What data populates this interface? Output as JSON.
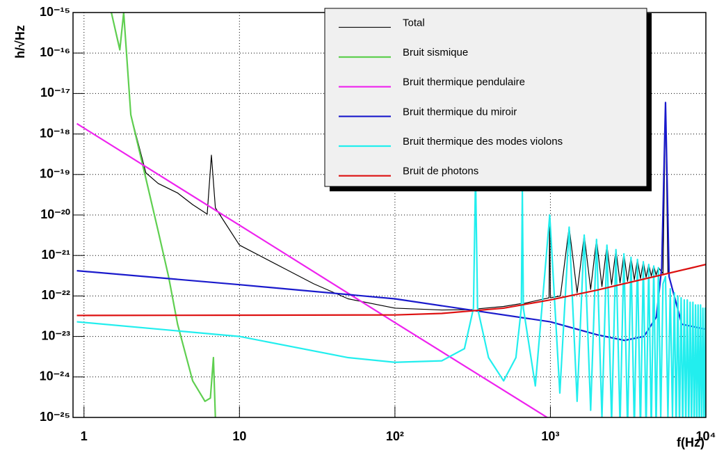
{
  "chart_data": {
    "type": "line",
    "x_label": "f(Hz)",
    "y_label": "h/√Hz",
    "log_x": true,
    "log_y": true,
    "grid": true,
    "legend": "top-right",
    "xlim": [
      0.85,
      10000
    ],
    "ylim": [
      1e-25,
      1e-15
    ],
    "xticks": [
      1,
      10,
      {
        "value": 100,
        "label": "10²"
      },
      {
        "value": 1000,
        "label": "10³"
      },
      {
        "value": 10000,
        "label": "10⁴"
      }
    ],
    "yticks": [
      {
        "value": 1e-25,
        "label": "10⁻²⁵"
      },
      {
        "value": 1e-24,
        "label": "10⁻²⁴"
      },
      {
        "value": 1e-23,
        "label": "10⁻²³"
      },
      {
        "value": 1e-22,
        "label": "10⁻²²"
      },
      {
        "value": 1e-21,
        "label": "10⁻²¹"
      },
      {
        "value": 1e-20,
        "label": "10⁻²⁰"
      },
      {
        "value": 1e-19,
        "label": "10⁻¹⁹"
      },
      {
        "value": 1e-18,
        "label": "10⁻¹⁸"
      },
      {
        "value": 1e-17,
        "label": "10⁻¹⁷"
      },
      {
        "value": 1e-16,
        "label": "10⁻¹⁶"
      },
      {
        "value": 1e-15,
        "label": "10⁻¹⁵"
      }
    ],
    "series": [
      {
        "name": "Total",
        "color": "#000000",
        "x": [
          1.5,
          1.7,
          1.8,
          2.0,
          2.5,
          3,
          4,
          5,
          6.2,
          6.6,
          7,
          10,
          20,
          30,
          50,
          100,
          200,
          320,
          330,
          340,
          500,
          650,
          660,
          670,
          980,
          990,
          1000,
          1160,
          1320,
          1485,
          1650,
          1815,
          1980,
          2145,
          2310,
          2475,
          2640,
          2805,
          2970,
          3135,
          3300,
          3465,
          3630,
          3795,
          3960,
          4125,
          4290,
          4455,
          4620,
          4785,
          4950,
          5300,
          5500,
          5700,
          6000,
          8000,
          10000
        ],
        "values": [
          1e-15,
          1.3e-16,
          1e-15,
          3e-18,
          1.1e-19,
          6e-20,
          3.5e-20,
          1.8e-20,
          1.05e-20,
          3e-19,
          1.5e-20,
          1.8e-21,
          4.5e-22,
          2e-22,
          8.5e-23,
          5e-23,
          4.5e-23,
          4.6e-23,
          1e-19,
          4.8e-23,
          5.5e-23,
          6.5e-23,
          4e-20,
          6.5e-23,
          9e-23,
          1e-20,
          9e-23,
          1e-22,
          5e-21,
          1.2e-22,
          3.2e-21,
          1.45e-22,
          2.5e-21,
          1.7e-22,
          1.8e-21,
          1.9e-22,
          1.4e-21,
          2.1e-22,
          1.1e-21,
          2.3e-22,
          9e-22,
          2.5e-22,
          8e-22,
          2.7e-22,
          7e-22,
          2.9e-22,
          6e-22,
          3.1e-22,
          5.5e-22,
          3.3e-22,
          5e-22,
          3.6e-22,
          6e-18,
          3.7e-22,
          3.8e-22,
          4.8e-22,
          6e-22
        ]
      },
      {
        "name": "Bruit sismique",
        "color": "#5fcf50",
        "x": [
          1.5,
          1.7,
          1.8,
          2.0,
          2.5,
          3,
          3.5,
          4,
          5,
          6,
          6.5,
          6.8,
          7
        ],
        "values": [
          1e-15,
          1.2e-16,
          1e-15,
          3e-18,
          8e-20,
          4e-21,
          3e-22,
          2e-23,
          8e-25,
          2.5e-25,
          3e-25,
          3e-24,
          1e-25
        ]
      },
      {
        "name": "Bruit thermique pendulaire",
        "color": "#ee22ee",
        "x": [
          0.9,
          10,
          100,
          1000
        ],
        "values": [
          1.8e-18,
          5.6e-21,
          2.2e-23,
          8.9e-26
        ]
      },
      {
        "name": "Bruit thermique du miroir",
        "color": "#1a1acc",
        "x": [
          0.9,
          10,
          100,
          1000,
          2000,
          3000,
          4000,
          4800,
          5200,
          5500,
          5800,
          7000,
          10000
        ],
        "values": [
          4.2e-22,
          1.9e-22,
          8.5e-23,
          2.3e-23,
          1.1e-23,
          8e-24,
          1e-23,
          3e-23,
          5e-22,
          6e-18,
          3e-22,
          2e-23,
          1.5e-23
        ]
      },
      {
        "name": "Bruit thermique des modes violons",
        "color": "#22eeee",
        "x": [
          0.9,
          10,
          50,
          100,
          200,
          280,
          320,
          330,
          340,
          400,
          500,
          600,
          650,
          660,
          670,
          800,
          990,
          1150,
          1320,
          1485,
          1650,
          1815,
          1980,
          2145,
          2310,
          2475,
          2640,
          2805,
          2970,
          3135,
          3300,
          3465,
          3630,
          3795,
          3960,
          4125,
          4290,
          4455,
          4620,
          4785,
          4950,
          5125,
          5300,
          5500,
          5700,
          5900,
          6100,
          6270,
          6435,
          6600,
          6765,
          6930,
          7095,
          7260,
          7425,
          7590,
          7755,
          7920,
          8085,
          8250,
          8415,
          8580,
          8745,
          8910,
          9075,
          9240,
          9405,
          9570,
          9735,
          9900,
          10000
        ],
        "values": [
          2.3e-23,
          1e-23,
          3e-24,
          2.3e-24,
          2.5e-24,
          5e-24,
          5e-23,
          1e-19,
          5e-23,
          3e-24,
          8e-25,
          3e-24,
          5e-23,
          4e-20,
          5e-23,
          6e-25,
          1e-20,
          4e-25,
          5e-21,
          2.5e-25,
          3.2e-21,
          1.5e-25,
          2.5e-21,
          1e-25,
          1.8e-21,
          8e-26,
          1.4e-21,
          6e-26,
          1.1e-21,
          5e-26,
          9e-22,
          5e-26,
          8e-22,
          5e-26,
          7e-22,
          5e-26,
          6e-22,
          5e-26,
          5.5e-22,
          5e-26,
          5e-22,
          1e-25,
          2e-22,
          3e-22,
          1e-25,
          1.5e-22,
          1e-25,
          1.2e-22,
          5e-26,
          1e-22,
          5e-26,
          9e-23,
          5e-26,
          8e-23,
          5e-26,
          8e-23,
          5e-26,
          7e-23,
          5e-26,
          7e-23,
          5e-26,
          6e-23,
          5e-26,
          6e-23,
          5e-26,
          6e-23,
          5e-26,
          5e-23,
          5e-26,
          5e-23,
          1e-25
        ]
      },
      {
        "name": "Bruit de photons",
        "color": "#dd1111",
        "x": [
          0.9,
          100,
          200,
          500,
          1000,
          2000,
          5000,
          10000
        ],
        "values": [
          3.3e-23,
          3.4e-23,
          3.7e-23,
          5e-23,
          8e-23,
          1.4e-22,
          3.2e-22,
          6e-22
        ]
      }
    ]
  }
}
